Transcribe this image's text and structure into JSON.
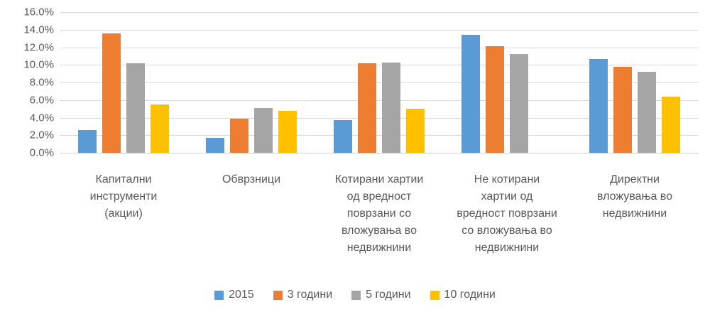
{
  "chart_style": {
    "background": "#FFFFFF",
    "text_color": "#595959",
    "gridline_color": "#D9D9D9",
    "axis_line_color": "#D0D0D0",
    "grid": true,
    "legend_position": "bottom"
  },
  "chart_data": {
    "type": "bar",
    "title": "",
    "xlabel": "",
    "ylabel": "",
    "ylim": [
      0,
      16
    ],
    "ytick_step": 2,
    "ytick_labels_top_down": [
      "16.0%",
      "14.0%",
      "12.0%",
      "10.0%",
      "8.0%",
      "6.0%",
      "4.0%",
      "2.0%",
      "0.0%"
    ],
    "categories": [
      "Капитални\nинструменти\n(акции)",
      "Обврзници",
      "Котирани хартии\nод вредност\nповрзани со\nвложувања во\nнедвижнини",
      "Не котирани\nхартии од\nвредност поврзани\nсо вложувања во\nнедвижнини",
      "Директни\nвложувања во\nнедвижнини"
    ],
    "series": [
      {
        "name": "2015",
        "color": "#5B9BD5",
        "values": [
          2.6,
          1.7,
          3.7,
          13.4,
          10.7
        ]
      },
      {
        "name": "3 години",
        "color": "#ED7D31",
        "values": [
          13.6,
          3.9,
          10.2,
          12.1,
          9.8
        ]
      },
      {
        "name": "5 години",
        "color": "#A5A5A5",
        "values": [
          10.2,
          5.1,
          10.3,
          11.2,
          9.2
        ]
      },
      {
        "name": "10 години",
        "color": "#FFC000",
        "values": [
          5.5,
          4.8,
          5.0,
          null,
          6.4
        ]
      }
    ],
    "legend": [
      "2015",
      "3 години",
      "5 години",
      "10 години"
    ]
  }
}
